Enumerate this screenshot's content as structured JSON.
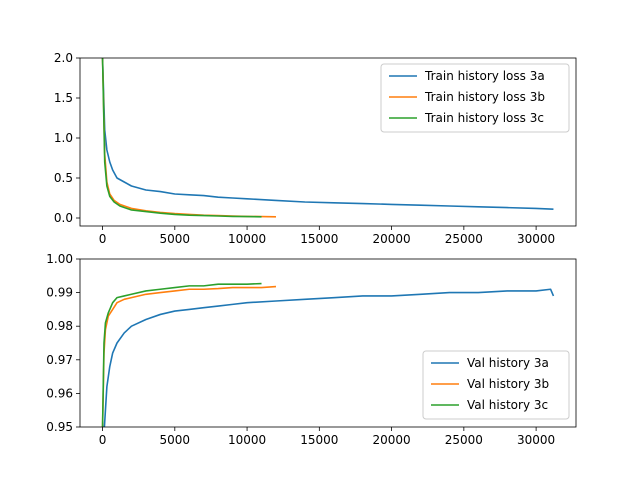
{
  "chart_data": [
    {
      "type": "line",
      "title": "",
      "xlabel": "",
      "ylabel": "",
      "xlim": [
        -1560,
        32760
      ],
      "ylim": [
        -0.1,
        2.0
      ],
      "xticks": [
        0,
        5000,
        10000,
        15000,
        20000,
        25000,
        30000
      ],
      "xtick_labels": [
        "0",
        "5000",
        "10000",
        "15000",
        "20000",
        "25000",
        "30000"
      ],
      "yticks": [
        0.0,
        0.5,
        1.0,
        1.5,
        2.0
      ],
      "ytick_labels": [
        "0.0",
        "0.5",
        "1.0",
        "1.5",
        "2.0"
      ],
      "grid": false,
      "legend_position": "upper right",
      "series": [
        {
          "name": "Train history loss 3a",
          "color": "#1f77b4",
          "x": [
            0,
            150,
            300,
            500,
            700,
            1000,
            1500,
            2000,
            3000,
            4000,
            5000,
            6000,
            7000,
            8000,
            9000,
            10000,
            12000,
            14000,
            16000,
            18000,
            20000,
            22000,
            24000,
            26000,
            28000,
            30000,
            31200
          ],
          "y": [
            2.0,
            1.1,
            0.85,
            0.7,
            0.6,
            0.5,
            0.45,
            0.4,
            0.35,
            0.33,
            0.3,
            0.29,
            0.28,
            0.26,
            0.25,
            0.24,
            0.22,
            0.2,
            0.19,
            0.18,
            0.17,
            0.16,
            0.15,
            0.14,
            0.13,
            0.12,
            0.11
          ]
        },
        {
          "name": "Train history loss 3b",
          "color": "#ff7f0e",
          "x": [
            0,
            150,
            300,
            500,
            800,
            1200,
            2000,
            3000,
            4000,
            5000,
            6000,
            7000,
            8000,
            9000,
            10000,
            11000,
            12000
          ],
          "y": [
            2.0,
            0.8,
            0.45,
            0.3,
            0.22,
            0.17,
            0.12,
            0.09,
            0.07,
            0.055,
            0.045,
            0.035,
            0.03,
            0.025,
            0.02,
            0.018,
            0.015
          ]
        },
        {
          "name": "Train history loss 3c",
          "color": "#2ca02c",
          "x": [
            0,
            150,
            300,
            500,
            800,
            1200,
            2000,
            3000,
            4000,
            5000,
            6000,
            7000,
            8000,
            9000,
            10000,
            11000
          ],
          "y": [
            2.0,
            0.7,
            0.4,
            0.27,
            0.2,
            0.15,
            0.1,
            0.08,
            0.06,
            0.045,
            0.035,
            0.03,
            0.025,
            0.02,
            0.018,
            0.015
          ]
        }
      ]
    },
    {
      "type": "line",
      "title": "",
      "xlabel": "",
      "ylabel": "",
      "xlim": [
        -1560,
        32760
      ],
      "ylim": [
        0.95,
        1.0
      ],
      "xticks": [
        0,
        5000,
        10000,
        15000,
        20000,
        25000,
        30000
      ],
      "xtick_labels": [
        "0",
        "5000",
        "10000",
        "15000",
        "20000",
        "25000",
        "30000"
      ],
      "yticks": [
        0.95,
        0.96,
        0.97,
        0.98,
        0.99,
        1.0
      ],
      "ytick_labels": [
        "0.95",
        "0.96",
        "0.97",
        "0.98",
        "0.99",
        "1.00"
      ],
      "grid": false,
      "legend_position": "lower right",
      "series": [
        {
          "name": "Val history 3a",
          "color": "#1f77b4",
          "x": [
            100,
            200,
            300,
            500,
            700,
            1000,
            1500,
            2000,
            3000,
            4000,
            5000,
            6000,
            7000,
            8000,
            9000,
            10000,
            12000,
            14000,
            16000,
            18000,
            20000,
            22000,
            24000,
            26000,
            28000,
            30000,
            31000,
            31200
          ],
          "y": [
            0.948,
            0.955,
            0.962,
            0.968,
            0.972,
            0.975,
            0.978,
            0.98,
            0.982,
            0.9835,
            0.9845,
            0.985,
            0.9855,
            0.986,
            0.9865,
            0.987,
            0.9875,
            0.988,
            0.9885,
            0.989,
            0.989,
            0.9895,
            0.99,
            0.99,
            0.9905,
            0.9905,
            0.991,
            0.989
          ]
        },
        {
          "name": "Val history 3b",
          "color": "#ff7f0e",
          "x": [
            0,
            100,
            200,
            400,
            700,
            1000,
            1500,
            2000,
            3000,
            4000,
            5000,
            6000,
            7000,
            8000,
            9000,
            10000,
            11000,
            12000
          ],
          "y": [
            0.95,
            0.972,
            0.979,
            0.983,
            0.985,
            0.987,
            0.988,
            0.9885,
            0.9895,
            0.99,
            0.9905,
            0.991,
            0.991,
            0.9912,
            0.9915,
            0.9915,
            0.9915,
            0.9918
          ]
        },
        {
          "name": "Val history 3c",
          "color": "#2ca02c",
          "x": [
            0,
            100,
            200,
            400,
            700,
            1000,
            1500,
            2000,
            3000,
            4000,
            5000,
            6000,
            7000,
            8000,
            9000,
            10000,
            11000
          ],
          "y": [
            0.95,
            0.975,
            0.981,
            0.984,
            0.987,
            0.9885,
            0.989,
            0.9895,
            0.9905,
            0.991,
            0.9915,
            0.992,
            0.992,
            0.9925,
            0.9925,
            0.9925,
            0.9927
          ]
        }
      ]
    }
  ]
}
